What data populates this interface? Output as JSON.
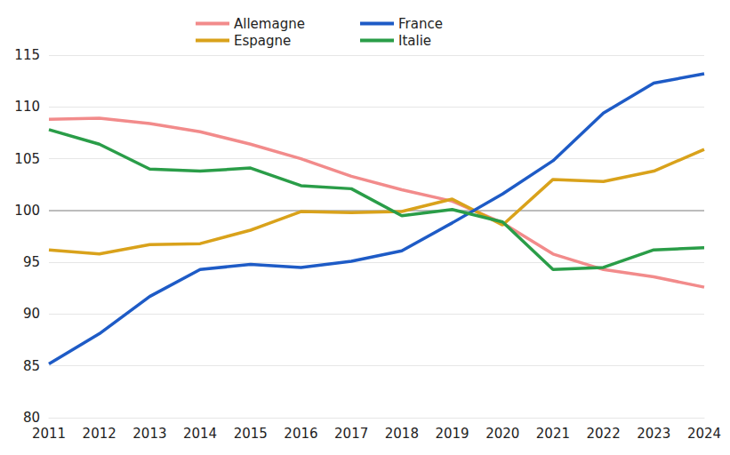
{
  "chart_data": {
    "type": "line",
    "categories": [
      "2011",
      "2012",
      "2013",
      "2014",
      "2015",
      "2016",
      "2017",
      "2018",
      "2019",
      "2020",
      "2021",
      "2022",
      "2023",
      "2024"
    ],
    "series": [
      {
        "name": "Allemagne",
        "color": "#f28b8b",
        "values": [
          108.8,
          108.9,
          108.4,
          107.6,
          106.4,
          105.0,
          103.3,
          102.0,
          100.9,
          98.8,
          95.8,
          94.3,
          93.6,
          92.6
        ]
      },
      {
        "name": "Espagne",
        "color": "#d9a21b",
        "values": [
          96.2,
          95.8,
          96.7,
          96.8,
          98.1,
          99.9,
          99.8,
          99.9,
          101.1,
          98.6,
          103.0,
          102.8,
          103.8,
          105.9
        ]
      },
      {
        "name": "France",
        "color": "#1e5bc6",
        "values": [
          85.2,
          88.1,
          91.7,
          94.3,
          94.8,
          94.5,
          95.1,
          96.1,
          98.8,
          101.6,
          104.8,
          109.4,
          112.3,
          113.2
        ]
      },
      {
        "name": "Italie",
        "color": "#2a9d48",
        "values": [
          107.8,
          106.4,
          104.0,
          103.8,
          104.1,
          102.4,
          102.1,
          99.5,
          100.1,
          98.9,
          94.3,
          94.5,
          96.2,
          96.4
        ]
      }
    ],
    "ylim": [
      80,
      115
    ],
    "yticks": [
      80,
      85,
      90,
      95,
      100,
      105,
      110,
      115
    ],
    "baseline": 100,
    "grid": true,
    "legend": "top"
  }
}
